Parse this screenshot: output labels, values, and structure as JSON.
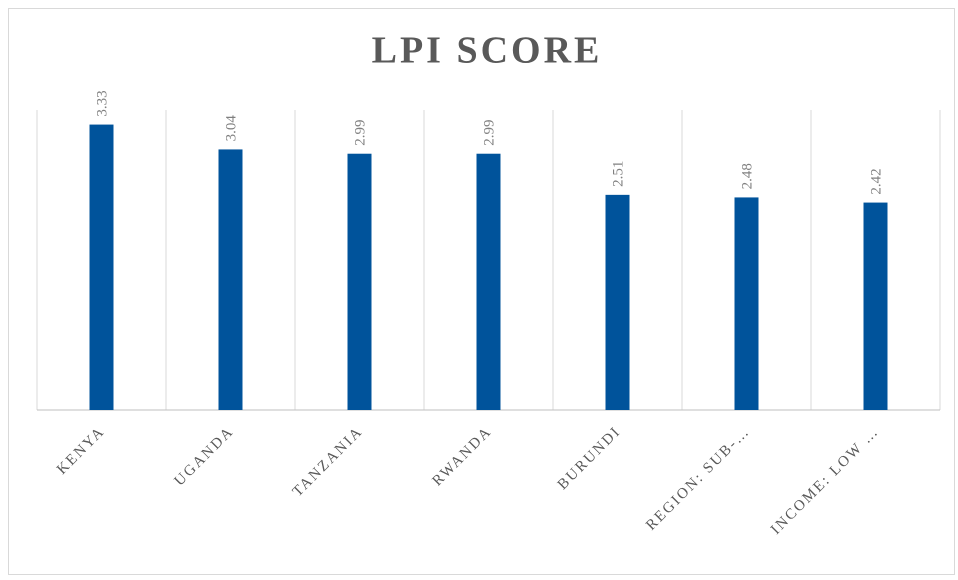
{
  "chart_data": {
    "type": "bar",
    "title": "LPI SCORE",
    "categories": [
      "KENYA",
      "UGANDA",
      "TANZANIA",
      "RWANDA",
      "BURUNDI",
      "REGION: SUB-…",
      "INCOME: LOW …"
    ],
    "values": [
      3.33,
      3.04,
      2.99,
      2.99,
      2.51,
      2.48,
      2.42
    ],
    "color": "#00539b",
    "ylim": [
      0,
      3.5
    ],
    "grid": true
  }
}
